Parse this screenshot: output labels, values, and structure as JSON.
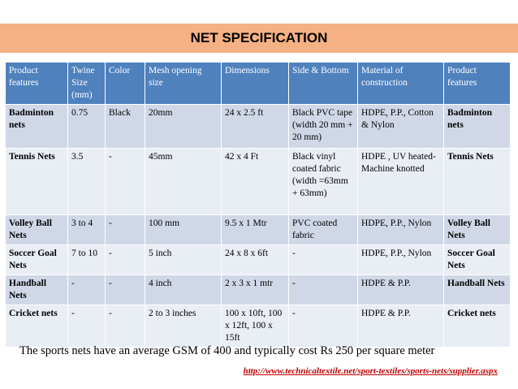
{
  "title": "NET SPECIFICATION",
  "headers": [
    "Product features",
    "Twine Size (mm)",
    "Color",
    "Mesh opening size",
    "Dimensions",
    "Side & Bottom",
    "Material of construction",
    "Product features"
  ],
  "rows": [
    [
      "Badminton nets",
      "0.75",
      "Black",
      "20mm",
      "24 x 2.5 ft",
      "Black PVC tape (width 20 mm + 20 mm)",
      "HDPE, P.P., Cotton & Nylon",
      "Badminton nets"
    ],
    [
      "Tennis Nets",
      "3.5",
      "-",
      "45mm",
      "42  x 4 Ft",
      "Black vinyl coated fabric (width =63mm + 63mm)",
      "HDPE , UV heated-Machine knotted",
      "Tennis Nets"
    ],
    [
      "Volley Ball Nets",
      "3 to 4",
      "-",
      "100 mm",
      "9.5  x 1 Mtr",
      "PVC coated fabric",
      "HDPE, P.P., Nylon",
      "Volley Ball Nets"
    ],
    [
      "Soccer Goal Nets",
      "7 to 10",
      "-",
      "5 inch",
      "24 x 8 x 6ft",
      "-",
      "HDPE, P.P., Nylon",
      "Soccer Goal Nets"
    ],
    [
      "Handball Nets",
      "-",
      "-",
      "4 inch",
      "2 x 3 x 1 mtr",
      "-",
      "HDPE & P.P.",
      "Handball Nets"
    ],
    [
      "Cricket nets",
      "-",
      "-",
      "2 to 3  inches",
      "100 x 10ft, 100 x 12ft, 100 x 15ft",
      "-",
      "HDPE & P.P.",
      "Cricket nets"
    ]
  ],
  "footnote": "The sports nets have an average GSM of 400 and typically cost Rs 250 per square meter",
  "source_url": "http://www.technicaltextile.net/sport-textiles/sports-nets/supplier.aspx",
  "colors": {
    "title_bar": "#f5b183",
    "header": "#4f81bd",
    "row_odd": "#d0d8e8",
    "row_even": "#e9edf4",
    "url": "#c00000"
  }
}
